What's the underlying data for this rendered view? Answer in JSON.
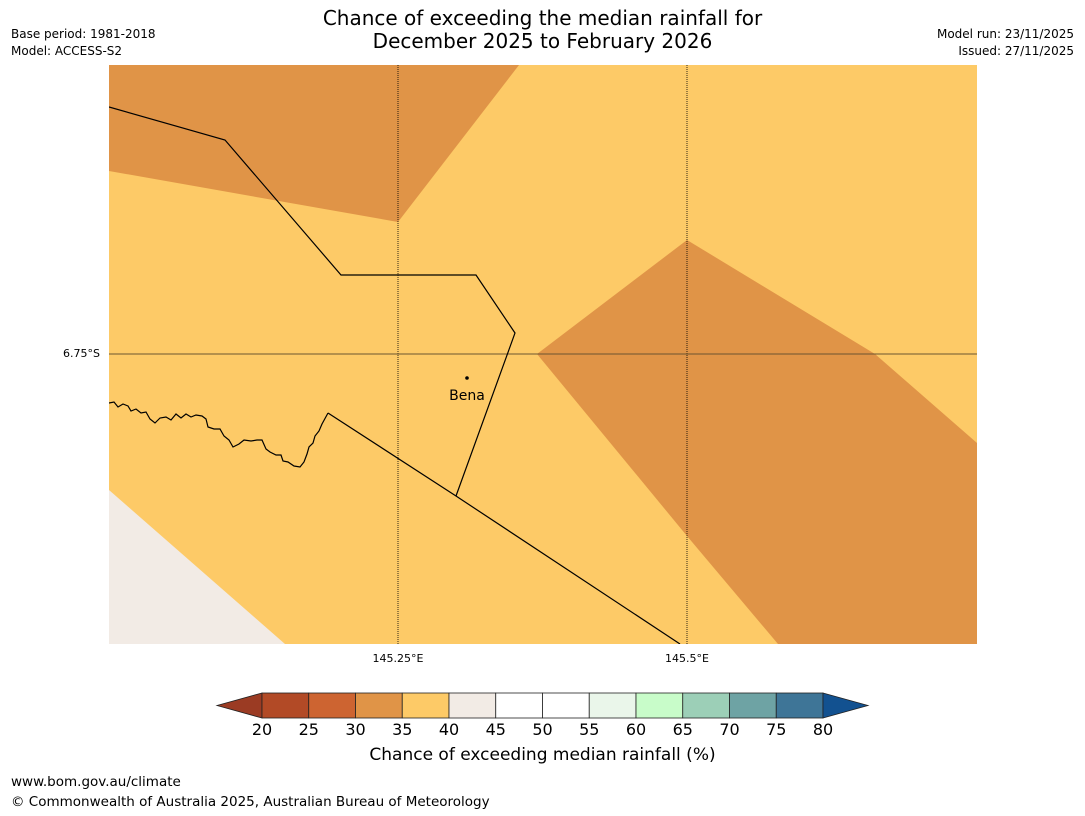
{
  "title": {
    "line1": "Chance of exceeding the median rainfall for",
    "line2": "December 2025 to February 2026"
  },
  "meta_left": {
    "base_period": "Base period: 1981-2018",
    "model": "Model: ACCESS-S2"
  },
  "meta_right": {
    "model_run": "Model run: 23/11/2025",
    "issued": "Issued: 27/11/2025"
  },
  "map": {
    "latitude_label": "6.75°S",
    "longitude_labels": [
      "145.25°E",
      "145.5°E"
    ],
    "place": "Bena",
    "fills": {
      "35-40": "#fdca67",
      "30-35": "#e09447",
      "40-45": "#f2ebe5"
    }
  },
  "colorbar": {
    "ticks": [
      "20",
      "25",
      "30",
      "35",
      "40",
      "45",
      "50",
      "55",
      "60",
      "65",
      "70",
      "75",
      "80"
    ],
    "colors": [
      "#9b3b23",
      "#b24a26",
      "#cd6431",
      "#e09447",
      "#fdca67",
      "#f2ebe5",
      "#ffffff",
      "#ffffff",
      "#eaf6ea",
      "#c8fcc9",
      "#9ccfb7",
      "#6ea3a4",
      "#3e7597",
      "#125190"
    ],
    "label": "Chance of exceeding median rainfall (%)"
  },
  "footer": {
    "url": "www.bom.gov.au/climate",
    "copyright": "© Commonwealth of Australia 2025, Australian Bureau of Meteorology"
  }
}
